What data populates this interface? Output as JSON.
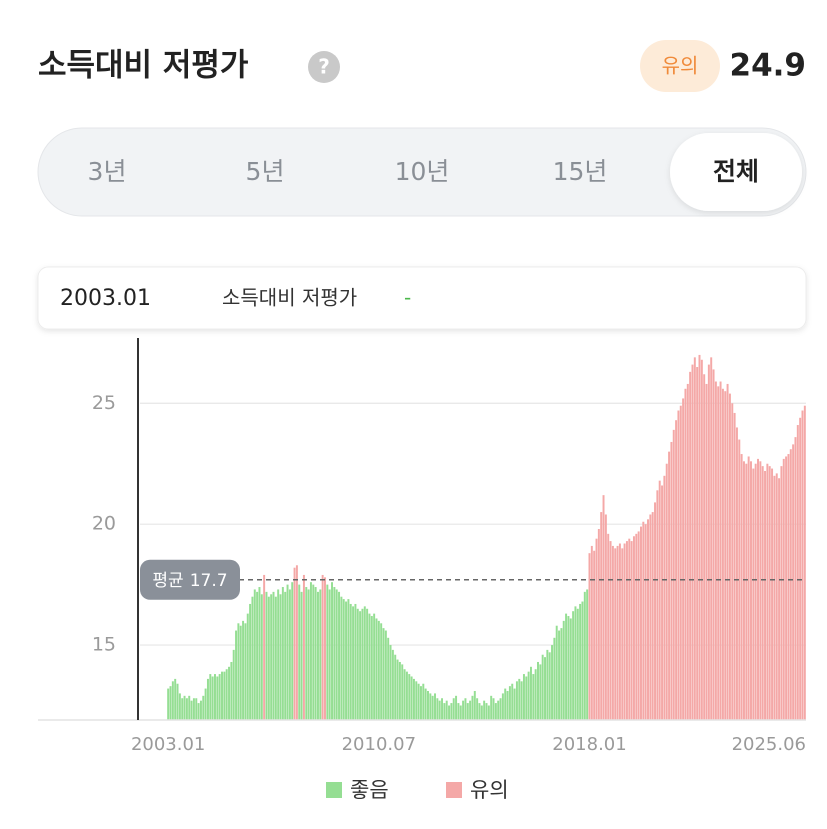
{
  "header": {
    "title": "소득대비 저평가",
    "help": "?",
    "badge": "유의",
    "value": 24.9
  },
  "tabs": [
    "3년",
    "5년",
    "10년",
    "15년",
    "전체"
  ],
  "tooltip": {
    "date": "2003.01",
    "label": "소득대비 저평가",
    "value": "-"
  },
  "chart_data": {
    "type": "bar",
    "categories": [
      "2003.01",
      null,
      null,
      null,
      null,
      null,
      null,
      null,
      null,
      null,
      null,
      null,
      null,
      null,
      null,
      null,
      null,
      null,
      null,
      null,
      null,
      null,
      null,
      null,
      null,
      null,
      null,
      null,
      null,
      null,
      null,
      null,
      null,
      null,
      null,
      null,
      null,
      null,
      null,
      null,
      null,
      null,
      null,
      null,
      null,
      null,
      null,
      null,
      null,
      null,
      null,
      null,
      null,
      null,
      null,
      null,
      null,
      null,
      null,
      null,
      null,
      null,
      null,
      null,
      null,
      null,
      null,
      null,
      null,
      null,
      null,
      null,
      null,
      null,
      null,
      null,
      null,
      null,
      null,
      null,
      null,
      null,
      null,
      null,
      null,
      null,
      null,
      null,
      null,
      null,
      "2010.07",
      null,
      null,
      null,
      null,
      null,
      null,
      null,
      null,
      null,
      null,
      null,
      null,
      null,
      null,
      null,
      null,
      null,
      null,
      null,
      null,
      null,
      null,
      null,
      null,
      null,
      null,
      null,
      null,
      null,
      null,
      null,
      null,
      null,
      null,
      null,
      null,
      null,
      null,
      null,
      null,
      null,
      null,
      null,
      null,
      null,
      null,
      null,
      null,
      null,
      null,
      null,
      null,
      null,
      null,
      null,
      null,
      null,
      null,
      null,
      null,
      null,
      null,
      null,
      null,
      null,
      null,
      null,
      null,
      null,
      null,
      null,
      null,
      null,
      null,
      null,
      null,
      null,
      null,
      null,
      null,
      null,
      null,
      null,
      null,
      null,
      null,
      null,
      null,
      null,
      "2018.01",
      null,
      null,
      null,
      null,
      null,
      null,
      null,
      null,
      null,
      null,
      null,
      null,
      null,
      null,
      null,
      null,
      null,
      null,
      null,
      null,
      null,
      null,
      null,
      null,
      null,
      null,
      null,
      null,
      null,
      null,
      null,
      null,
      null,
      null,
      null,
      null,
      null,
      null,
      null,
      null,
      null,
      null,
      null,
      null,
      null,
      null,
      null,
      null,
      null,
      null,
      null,
      null,
      null,
      null,
      null,
      null,
      null,
      null,
      null,
      null,
      null,
      null,
      null,
      null,
      null,
      null,
      null,
      null,
      null,
      null,
      null,
      null,
      null,
      null,
      null,
      null,
      null,
      null,
      null,
      null,
      null,
      null,
      null,
      null,
      null,
      null,
      null,
      null,
      "2025.06",
      null,
      null,
      null
    ],
    "series": [
      {
        "name": "좋음",
        "color": "#95de93",
        "values": [
          13.2,
          13.3,
          13.5,
          13.6,
          13.4,
          13.0,
          12.8,
          12.9,
          12.8,
          12.9,
          12.7,
          12.8,
          12.8,
          12.6,
          12.7,
          12.9,
          13.2,
          13.6,
          13.8,
          13.7,
          13.8,
          13.7,
          13.8,
          13.9,
          13.9,
          14.0,
          14.1,
          14.3,
          14.8,
          15.6,
          15.9,
          15.8,
          16.0,
          15.9,
          16.3,
          16.7,
          17.0,
          17.3,
          17.2,
          17.4,
          17.1,
          null,
          17.2,
          17.0,
          17.1,
          17.2,
          17.0,
          17.3,
          17.1,
          17.4,
          17.2,
          17.5,
          17.3,
          17.6,
          null,
          null,
          17.5,
          17.2,
          null,
          17.4,
          17.3,
          17.6,
          17.5,
          17.4,
          17.2,
          17.3,
          null,
          null,
          17.5,
          17.3,
          17.6,
          17.4,
          17.3,
          17.2,
          17.0,
          16.9,
          16.8,
          16.9,
          16.7,
          16.6,
          16.7,
          16.5,
          16.4,
          16.5,
          16.6,
          16.5,
          16.3,
          16.2,
          16.3,
          16.1,
          16.0,
          15.9,
          15.7,
          15.6,
          15.3,
          15.0,
          14.8,
          14.6,
          14.4,
          14.3,
          14.2,
          14.0,
          13.9,
          13.8,
          13.7,
          13.6,
          13.5,
          13.4,
          13.3,
          13.4,
          13.2,
          13.1,
          13.0,
          12.9,
          13.0,
          12.8,
          12.7,
          12.8,
          12.6,
          12.7,
          12.5,
          12.6,
          12.8,
          12.9,
          12.6,
          12.5,
          12.7,
          12.8,
          12.6,
          12.7,
          12.9,
          13.1,
          12.8,
          12.6,
          12.5,
          12.7,
          12.6,
          12.5,
          12.9,
          12.8,
          12.6,
          12.7,
          12.8,
          13.0,
          13.2,
          13.1,
          13.3,
          13.4,
          13.2,
          13.5,
          13.6,
          13.5,
          13.8,
          13.7,
          13.9,
          14.1,
          13.8,
          14.0,
          14.3,
          14.2,
          14.6,
          14.5,
          14.8,
          14.7,
          15.0,
          15.3,
          15.8,
          15.6,
          15.7,
          16.0,
          16.3,
          16.2,
          16.1,
          16.4,
          16.6,
          16.5,
          16.7,
          16.8,
          17.2,
          17.3,
          null,
          null,
          null,
          null,
          null,
          null,
          null,
          null,
          null,
          null,
          null,
          null,
          null,
          null,
          null,
          null,
          null,
          null,
          null,
          null,
          null,
          null,
          null,
          null,
          null,
          null,
          null,
          null,
          null,
          null,
          null,
          null,
          null,
          null,
          null,
          null,
          null,
          null,
          null,
          null,
          null,
          null,
          null,
          null,
          null,
          null,
          null,
          null,
          null,
          null,
          null,
          null,
          null,
          null,
          null,
          null,
          null,
          null,
          null,
          null,
          null,
          null,
          null,
          null,
          null,
          null,
          null,
          null,
          null,
          null,
          null,
          null,
          null,
          null,
          null,
          null,
          null,
          null,
          null,
          null,
          null,
          null,
          null,
          null,
          null,
          null,
          null,
          null,
          null,
          null,
          null,
          null,
          null
        ]
      },
      {
        "name": "유의",
        "color": "#f4a8a7",
        "values": [
          null,
          null,
          null,
          null,
          null,
          null,
          null,
          null,
          null,
          null,
          null,
          null,
          null,
          null,
          null,
          null,
          null,
          null,
          null,
          null,
          null,
          null,
          null,
          null,
          null,
          null,
          null,
          null,
          null,
          null,
          null,
          null,
          null,
          null,
          null,
          null,
          null,
          null,
          null,
          null,
          null,
          17.9,
          null,
          null,
          null,
          null,
          null,
          null,
          null,
          null,
          null,
          null,
          null,
          null,
          18.2,
          18.3,
          null,
          null,
          17.9,
          null,
          null,
          null,
          null,
          null,
          null,
          null,
          17.9,
          17.8,
          null,
          null,
          null,
          null,
          null,
          null,
          null,
          null,
          null,
          null,
          null,
          null,
          null,
          null,
          null,
          null,
          null,
          null,
          null,
          null,
          null,
          null,
          null,
          null,
          null,
          null,
          null,
          null,
          null,
          null,
          null,
          null,
          null,
          null,
          null,
          null,
          null,
          null,
          null,
          null,
          null,
          null,
          null,
          null,
          null,
          null,
          null,
          null,
          null,
          null,
          null,
          null,
          null,
          null,
          null,
          null,
          null,
          null,
          null,
          null,
          null,
          null,
          null,
          null,
          null,
          null,
          null,
          null,
          null,
          null,
          null,
          null,
          null,
          null,
          null,
          null,
          null,
          null,
          null,
          null,
          null,
          null,
          null,
          null,
          null,
          null,
          null,
          null,
          null,
          null,
          null,
          null,
          null,
          null,
          null,
          null,
          null,
          null,
          null,
          null,
          null,
          null,
          null,
          null,
          null,
          null,
          null,
          null,
          null,
          null,
          null,
          null,
          18.8,
          19.1,
          18.9,
          19.4,
          19.8,
          20.5,
          21.2,
          20.4,
          19.6,
          19.3,
          19.1,
          19.0,
          19.1,
          19.2,
          19.0,
          19.2,
          19.3,
          19.4,
          19.3,
          19.5,
          19.6,
          19.7,
          19.9,
          20.1,
          20.0,
          20.2,
          20.4,
          20.5,
          20.9,
          21.4,
          21.8,
          21.6,
          22.0,
          22.5,
          23.0,
          23.4,
          23.9,
          24.3,
          24.7,
          24.9,
          25.2,
          25.6,
          25.8,
          26.3,
          26.6,
          26.9,
          26.5,
          27.0,
          26.8,
          26.2,
          25.8,
          26.6,
          26.9,
          26.4,
          25.9,
          25.7,
          25.9,
          25.6,
          25.5,
          25.8,
          25.4,
          25.0,
          24.6,
          24.0,
          23.5,
          22.9,
          22.6,
          22.5,
          22.8,
          22.6,
          22.3,
          22.5,
          22.7,
          22.6,
          22.4,
          22.2,
          22.5,
          22.4,
          22.3,
          22.0,
          22.1,
          21.9,
          22.4,
          22.7,
          22.8,
          22.9,
          23.1,
          23.3,
          23.6,
          24.1,
          24.4,
          24.7,
          24.9
        ]
      }
    ],
    "ylim": [
      11.9,
      27.7
    ],
    "yticks": [
      15,
      20,
      25
    ],
    "grid": true,
    "average": 17.7,
    "average_label": "평균"
  }
}
